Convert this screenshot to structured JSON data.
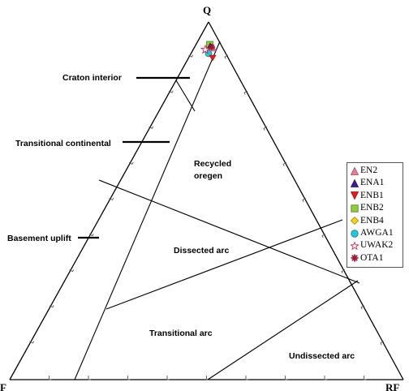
{
  "vertices": {
    "top": "Q",
    "left": "F",
    "right": "RF"
  },
  "fields": {
    "craton_interior": "Craton interior",
    "transitional_continental": "Transitional continental",
    "recycled_orogen_line1": "Recycled",
    "recycled_orogen_line2": "oregen",
    "dissected_arc": "Dissected arc",
    "basement_uplift": "Basement uplift",
    "transitional_arc": "Transitional arc",
    "undissected_arc": "Undissected arc"
  },
  "legend": [
    {
      "label": "EN2",
      "marker": "triangle-up",
      "color": "#e8799a",
      "stroke": "#b04060"
    },
    {
      "label": "ENA1",
      "marker": "triangle-up",
      "color": "#3a1f9c",
      "stroke": "#20106a"
    },
    {
      "label": "ENB1",
      "marker": "triangle-down",
      "color": "#e21b1b",
      "stroke": "#a00e0e"
    },
    {
      "label": "ENB2",
      "marker": "square",
      "color": "#8ecb3e",
      "stroke": "#4f7d18"
    },
    {
      "label": "ENB4",
      "marker": "diamond",
      "color": "#f2d21b",
      "stroke": "#a08a0a"
    },
    {
      "label": "AWGA1",
      "marker": "circle",
      "color": "#27c6d8",
      "stroke": "#10808c"
    },
    {
      "label": "UWAK2",
      "marker": "star",
      "color": "#ffffff",
      "stroke": "#d0244a"
    },
    {
      "label": "OTA1",
      "marker": "asterisk",
      "color": "#a3162e",
      "stroke": "#a3162e"
    }
  ]
}
